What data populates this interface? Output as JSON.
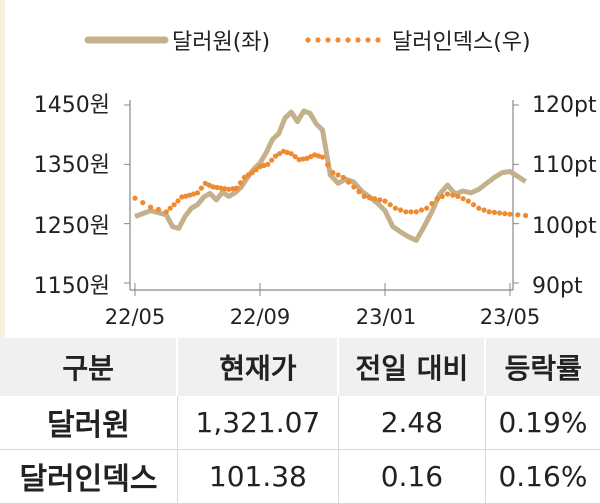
{
  "chart_data": {
    "type": "line",
    "legend_position": "top",
    "x_ticks": [
      "22/05",
      "22/09",
      "23/01",
      "23/05"
    ],
    "y_left": {
      "ticks": [
        "1450원",
        "1350원",
        "1250원",
        "1150원"
      ],
      "range": [
        1150,
        1450
      ]
    },
    "y_right": {
      "ticks": [
        "120pt",
        "110pt",
        "100pt",
        "90pt"
      ],
      "range": [
        90,
        120
      ]
    },
    "series": [
      {
        "name": "달러원(좌)",
        "axis": "left",
        "style": "solid",
        "color": "#c4b08a",
        "points": [
          [
            "22/05",
            1262
          ],
          [
            "22/05",
            1272
          ],
          [
            "22/06",
            1265
          ],
          [
            "22/06",
            1245
          ],
          [
            "22/06",
            1242
          ],
          [
            "22/06",
            1262
          ],
          [
            "22/06",
            1276
          ],
          [
            "22/07",
            1282
          ],
          [
            "22/07",
            1295
          ],
          [
            "22/07",
            1301
          ],
          [
            "22/07",
            1290
          ],
          [
            "22/07",
            1303
          ],
          [
            "22/08",
            1296
          ],
          [
            "22/08",
            1302
          ],
          [
            "22/08",
            1312
          ],
          [
            "22/08",
            1328
          ],
          [
            "22/08",
            1342
          ],
          [
            "22/09",
            1352
          ],
          [
            "22/09",
            1370
          ],
          [
            "22/09",
            1392
          ],
          [
            "22/09",
            1402
          ],
          [
            "22/09",
            1428
          ],
          [
            "22/10",
            1438
          ],
          [
            "22/10",
            1422
          ],
          [
            "22/10",
            1440
          ],
          [
            "22/10",
            1436
          ],
          [
            "22/10",
            1418
          ],
          [
            "22/11",
            1408
          ],
          [
            "22/11",
            1332
          ],
          [
            "22/11",
            1318
          ],
          [
            "22/11",
            1325
          ],
          [
            "22/12",
            1320
          ],
          [
            "22/12",
            1305
          ],
          [
            "22/12",
            1295
          ],
          [
            "22/12",
            1285
          ],
          [
            "23/01",
            1272
          ],
          [
            "23/01",
            1245
          ],
          [
            "23/01",
            1236
          ],
          [
            "23/01",
            1228
          ],
          [
            "23/02",
            1222
          ],
          [
            "23/02",
            1245
          ],
          [
            "23/02",
            1270
          ],
          [
            "23/02",
            1300
          ],
          [
            "23/03",
            1315
          ],
          [
            "23/03",
            1300
          ],
          [
            "23/03",
            1305
          ],
          [
            "23/03",
            1302
          ],
          [
            "23/04",
            1308
          ],
          [
            "23/04",
            1318
          ],
          [
            "23/04",
            1328
          ],
          [
            "23/04",
            1336
          ],
          [
            "23/05",
            1338
          ],
          [
            "23/05",
            1321
          ]
        ]
      },
      {
        "name": "달러인덱스(우)",
        "axis": "right",
        "style": "dotted",
        "color": "#ef8a2e",
        "points": [
          [
            "22/05",
            104.3
          ],
          [
            "22/05",
            102.8
          ],
          [
            "22/06",
            102.0
          ],
          [
            "22/06",
            103.2
          ],
          [
            "22/06",
            104.5
          ],
          [
            "22/06",
            104.8
          ],
          [
            "22/07",
            105.2
          ],
          [
            "22/07",
            106.8
          ],
          [
            "22/07",
            106.2
          ],
          [
            "22/07",
            106.0
          ],
          [
            "22/08",
            105.8
          ],
          [
            "22/08",
            106.0
          ],
          [
            "22/08",
            107.8
          ],
          [
            "22/08",
            108.6
          ],
          [
            "22/09",
            109.6
          ],
          [
            "22/09",
            110.0
          ],
          [
            "22/09",
            111.4
          ],
          [
            "22/09",
            112.2
          ],
          [
            "22/10",
            111.8
          ],
          [
            "22/10",
            110.8
          ],
          [
            "22/10",
            111.0
          ],
          [
            "22/10",
            111.6
          ],
          [
            "22/11",
            111.2
          ],
          [
            "22/11",
            108.6
          ],
          [
            "22/11",
            107.8
          ],
          [
            "22/12",
            106.2
          ],
          [
            "22/12",
            104.6
          ],
          [
            "22/12",
            104.2
          ],
          [
            "23/01",
            103.8
          ],
          [
            "23/01",
            102.6
          ],
          [
            "23/01",
            102.0
          ],
          [
            "23/02",
            102.0
          ],
          [
            "23/02",
            102.6
          ],
          [
            "23/02",
            104.2
          ],
          [
            "23/03",
            105.0
          ],
          [
            "23/03",
            104.6
          ],
          [
            "23/03",
            103.8
          ],
          [
            "23/04",
            102.6
          ],
          [
            "23/04",
            102.0
          ],
          [
            "23/04",
            101.8
          ],
          [
            "23/05",
            101.6
          ],
          [
            "23/05",
            101.38
          ]
        ]
      }
    ]
  },
  "table": {
    "headers": [
      "구분",
      "현재가",
      "전일 대비",
      "등락률"
    ],
    "rows": [
      [
        "달러원",
        "1,321.07",
        "2.48",
        "0.19%"
      ],
      [
        "달러인덱스",
        "101.38",
        "0.16",
        "0.16%"
      ]
    ]
  },
  "colors": {
    "axis": "#888888",
    "header_bg": "#f0f0f0",
    "stripe": "#fbeedd"
  }
}
